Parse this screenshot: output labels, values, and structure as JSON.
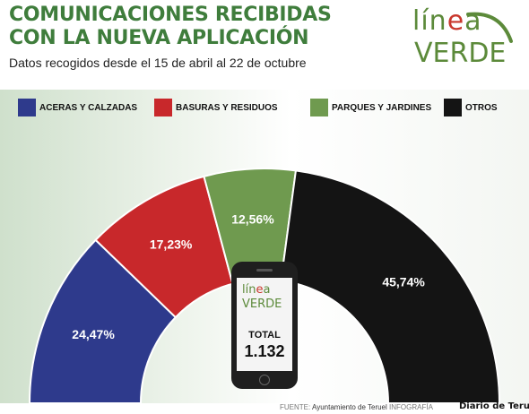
{
  "header": {
    "title_line1": "COMUNICACIONES RECIBIDAS",
    "title_line2": "CON LA NUEVA APLICACIÓN",
    "subtitle": "Datos recogidos desde el 15 de abril al 22 de octubre"
  },
  "logo": {
    "line1_a": "lín",
    "line1_b": "e",
    "line1_c": "a",
    "line2": "VERDE"
  },
  "chart_data": {
    "type": "pie",
    "shape": "half-donut",
    "categories": [
      "ACERAS Y CALZADAS",
      "BASURAS Y RESIDUOS",
      "PARQUES Y JARDINES",
      "OTROS"
    ],
    "values": [
      24.47,
      17.23,
      12.56,
      45.74
    ],
    "data_labels": [
      "24,47%",
      "17,23%",
      "12,56%",
      "45,74%"
    ],
    "colors": [
      "#2e3a8c",
      "#c8282b",
      "#6f9a4f",
      "#141414"
    ],
    "legend_position": "top"
  },
  "total": {
    "label": "TOTAL",
    "value": "1.132"
  },
  "footer": {
    "source_key": "FUENTE:",
    "source_value": "Ayuntamiento de Teruel",
    "infografia": "INFOGRAFÍA",
    "brand": "Diario de Teruel"
  }
}
